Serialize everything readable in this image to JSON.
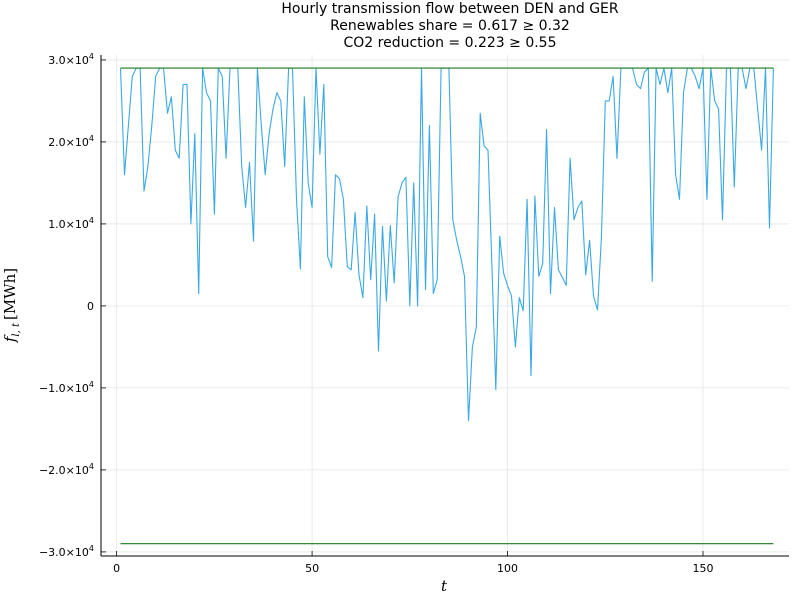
{
  "chart_data": {
    "type": "line",
    "title_lines": [
      "Hourly transmission flow between DEN and GER",
      "Renewables share = 0.617 ≥ 0.32",
      "CO2 reduction = 0.223 ≥ 0.55"
    ],
    "xlabel": "t",
    "ylabel_main": "f",
    "ylabel_sub": "l, t",
    "ylabel_unit": "[MWh]",
    "xlim": [
      -4,
      172
    ],
    "ylim": [
      -30500,
      30600
    ],
    "x_ticks": [
      {
        "value": 0,
        "label": "0"
      },
      {
        "value": 50,
        "label": "50"
      },
      {
        "value": 100,
        "label": "100"
      },
      {
        "value": 150,
        "label": "150"
      }
    ],
    "y_ticks": [
      {
        "value": 30000,
        "base": "3.0×10",
        "exp": "4"
      },
      {
        "value": 20000,
        "base": "2.0×10",
        "exp": "4"
      },
      {
        "value": 10000,
        "base": "1.0×10",
        "exp": "4"
      },
      {
        "value": 0,
        "base": "0",
        "exp": ""
      },
      {
        "value": -10000,
        "base": "−1.0×10",
        "exp": "4"
      },
      {
        "value": -20000,
        "base": "−2.0×10",
        "exp": "4"
      },
      {
        "value": -30000,
        "base": "−3.0×10",
        "exp": "4"
      }
    ],
    "grid": true,
    "legend": "none",
    "colors": {
      "flow": "#3ba8e6",
      "limit": "#1a7a1a",
      "grid": "#e6e6e6",
      "axis": "#000000"
    },
    "series": [
      {
        "role": "flow",
        "x": [
          1,
          2,
          3,
          4,
          5,
          6,
          7,
          8,
          9,
          10,
          11,
          12,
          13,
          14,
          15,
          16,
          17,
          18,
          19,
          20,
          21,
          22,
          23,
          24,
          25,
          26,
          27,
          28,
          29,
          30,
          31,
          32,
          33,
          34,
          35,
          36,
          37,
          38,
          39,
          40,
          41,
          42,
          43,
          44,
          45,
          46,
          47,
          48,
          49,
          50,
          51,
          52,
          53,
          54,
          55,
          56,
          57,
          58,
          59,
          60,
          61,
          62,
          63,
          64,
          65,
          66,
          67,
          68,
          69,
          70,
          71,
          72,
          73,
          74,
          75,
          76,
          77,
          78,
          79,
          80,
          81,
          82,
          83,
          84,
          85,
          86,
          87,
          88,
          89,
          90,
          91,
          92,
          93,
          94,
          95,
          96,
          97,
          98,
          99,
          100,
          101,
          102,
          103,
          104,
          105,
          106,
          107,
          108,
          109,
          110,
          111,
          112,
          113,
          114,
          115,
          116,
          117,
          118,
          119,
          120,
          121,
          122,
          123,
          124,
          125,
          126,
          127,
          128,
          129,
          130,
          131,
          132,
          133,
          134,
          135,
          136,
          137,
          138,
          139,
          140,
          141,
          142,
          143,
          144,
          145,
          146,
          147,
          148,
          149,
          150,
          151,
          152,
          153,
          154,
          155,
          156,
          157,
          158,
          159,
          160,
          161,
          162,
          163,
          164,
          165,
          166,
          167,
          168
        ],
        "y": [
          29000,
          16000,
          22000,
          28000,
          29000,
          29000,
          14000,
          17000,
          22000,
          28000,
          29000,
          29000,
          23500,
          25500,
          19000,
          18000,
          27000,
          27000,
          10000,
          21000,
          1500,
          29000,
          26000,
          25000,
          11200,
          29000,
          28000,
          18000,
          29000,
          29000,
          29000,
          17000,
          12000,
          17500,
          7900,
          29000,
          22000,
          16000,
          21000,
          24000,
          26000,
          25000,
          17000,
          29000,
          29000,
          13000,
          4500,
          25500,
          15000,
          12000,
          29000,
          18500,
          27000,
          6000,
          4700,
          16000,
          15500,
          13000,
          4800,
          4400,
          11400,
          3800,
          1000,
          12200,
          3200,
          11200,
          -5500,
          9700,
          600,
          9800,
          2800,
          13300,
          15000,
          15700,
          0,
          15000,
          0,
          29000,
          2000,
          22000,
          1500,
          3200,
          29000,
          29000,
          29000,
          10500,
          8000,
          6000,
          3600,
          -14000,
          -5000,
          -2600,
          23500,
          19500,
          19000,
          5000,
          -10200,
          8500,
          4000,
          2500,
          1200,
          -5000,
          1000,
          -600,
          13000,
          -8500,
          13400,
          3600,
          5200,
          21500,
          1500,
          12000,
          4400,
          3500,
          2500,
          18000,
          10500,
          12000,
          12800,
          3800,
          8000,
          1200,
          -500,
          8300,
          25000,
          25000,
          28000,
          18000,
          29000,
          29000,
          29000,
          29000,
          27000,
          26500,
          28500,
          29000,
          3000,
          29000,
          27000,
          29000,
          26000,
          29000,
          16000,
          13000,
          26000,
          29000,
          29000,
          28000,
          26500,
          29000,
          13000,
          29000,
          25000,
          24000,
          10500,
          29000,
          29000,
          14500,
          29000,
          29000,
          26500,
          29000,
          29000,
          24000,
          19000,
          29000,
          9500,
          29000
        ]
      },
      {
        "role": "upper-limit",
        "x": [
          1,
          168
        ],
        "y": [
          29000,
          29000
        ]
      },
      {
        "role": "lower-limit",
        "x": [
          1,
          168
        ],
        "y": [
          -29000,
          -29000
        ]
      }
    ]
  }
}
